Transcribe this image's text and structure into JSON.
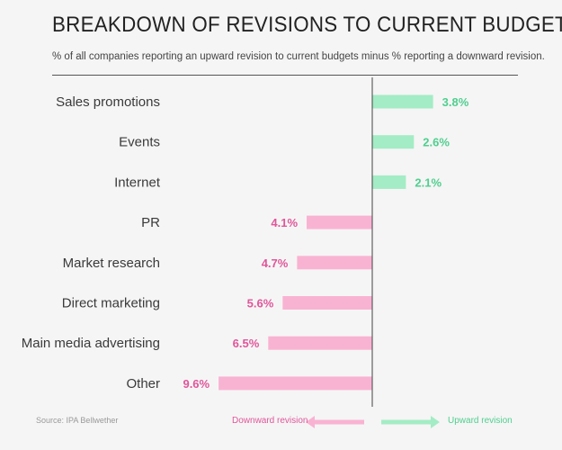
{
  "header": {
    "title": "BREAKDOWN OF REVISIONS TO CURRENT BUDGETS",
    "subtitle": "% of all companies reporting an upward revision to current budgets minus % reporting a downward revision."
  },
  "footer": {
    "source": "Source: IPA Bellwether",
    "legend_down": "Downward revision",
    "legend_up": "Upward revision"
  },
  "colors": {
    "up_bar": "#a3ecc5",
    "up_label": "#4fcf8f",
    "down_bar": "#f9b3d2",
    "down_label": "#e0569a",
    "axis": "#444444",
    "category_label": "#3a3a3a"
  },
  "chart_data": {
    "type": "bar",
    "orientation": "horizontal",
    "categories": [
      "Sales promotions",
      "Events",
      "Internet",
      "PR",
      "Market research",
      "Direct marketing",
      "Main media advertising",
      "Other"
    ],
    "values": [
      3.8,
      2.6,
      2.1,
      -4.1,
      -4.7,
      -5.6,
      -6.5,
      -9.6
    ],
    "value_labels": [
      "3.8%",
      "2.6%",
      "2.1%",
      "4.1%",
      "4.7%",
      "5.6%",
      "6.5%",
      "9.6%"
    ],
    "title": "BREAKDOWN OF REVISIONS TO CURRENT BUDGETS",
    "xlabel": "",
    "ylabel": "",
    "grid": false,
    "legend": [
      "Downward revision",
      "Upward revision"
    ]
  }
}
